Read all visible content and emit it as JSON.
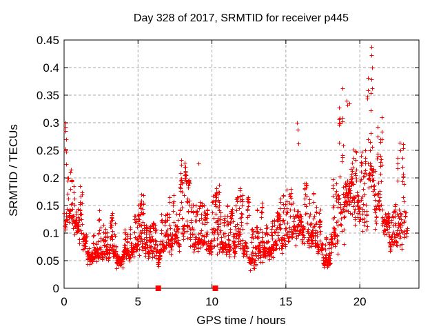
{
  "page": {
    "background": "#ffffff"
  },
  "chart_data": {
    "type": "scatter",
    "title": "Day 328 of 2017, SRMTID for receiver p445",
    "xlabel": "GPS time / hours",
    "ylabel": "SRMTID / TECUs",
    "xlim": [
      0,
      24
    ],
    "ylim": [
      0,
      0.45
    ],
    "xtick_values": [
      0,
      5,
      10,
      15,
      20
    ],
    "xtick_labels": [
      "0",
      "5",
      "10",
      "15",
      "20"
    ],
    "ytick_values": [
      0,
      0.05,
      0.1,
      0.15,
      0.2,
      0.25,
      0.3,
      0.35,
      0.4,
      0.45
    ],
    "ytick_labels": [
      "0",
      "0.05",
      "0.1",
      "0.15",
      "0.2",
      "0.25",
      "0.3",
      "0.35",
      "0.4",
      "0.45"
    ],
    "grid": true,
    "legend": "none",
    "marker": "plus",
    "marker_color": "#ff0000",
    "grid_color": "#a8a8a8",
    "axis_color": "#000000",
    "series": [
      {
        "name": "srmtid-points",
        "marker": "plus",
        "color": "#ff0000",
        "envelope_bins_format": "t_start_hours, t_end_hours, y_min_TECUs, y_max_TECUs, n_points",
        "envelope_bins": [
          [
            0.0,
            0.5,
            0.09,
            0.245,
            30
          ],
          [
            0.5,
            1.0,
            0.085,
            0.23,
            34
          ],
          [
            1.0,
            1.5,
            0.05,
            0.19,
            34
          ],
          [
            1.5,
            2.0,
            0.035,
            0.12,
            38
          ],
          [
            2.0,
            2.5,
            0.04,
            0.15,
            38
          ],
          [
            2.5,
            3.0,
            0.04,
            0.12,
            38
          ],
          [
            3.0,
            3.5,
            0.045,
            0.14,
            38
          ],
          [
            3.5,
            4.0,
            0.035,
            0.105,
            38
          ],
          [
            4.0,
            4.5,
            0.04,
            0.12,
            38
          ],
          [
            4.5,
            5.0,
            0.05,
            0.14,
            38
          ],
          [
            5.0,
            5.5,
            0.05,
            0.17,
            36
          ],
          [
            5.5,
            6.0,
            0.045,
            0.12,
            38
          ],
          [
            6.0,
            6.5,
            0.035,
            0.13,
            36
          ],
          [
            6.5,
            7.0,
            0.05,
            0.14,
            34
          ],
          [
            7.0,
            7.5,
            0.055,
            0.18,
            36
          ],
          [
            7.5,
            8.0,
            0.06,
            0.225,
            34
          ],
          [
            8.0,
            8.5,
            0.065,
            0.225,
            34
          ],
          [
            8.5,
            9.0,
            0.055,
            0.16,
            32
          ],
          [
            9.0,
            9.5,
            0.055,
            0.17,
            36
          ],
          [
            9.5,
            10.0,
            0.05,
            0.15,
            38
          ],
          [
            10.0,
            10.5,
            0.055,
            0.19,
            36
          ],
          [
            10.5,
            11.0,
            0.05,
            0.14,
            38
          ],
          [
            11.0,
            11.5,
            0.05,
            0.15,
            38
          ],
          [
            11.5,
            12.0,
            0.05,
            0.19,
            38
          ],
          [
            12.0,
            12.5,
            0.035,
            0.18,
            38
          ],
          [
            12.5,
            13.0,
            0.02,
            0.12,
            38
          ],
          [
            13.0,
            13.5,
            0.04,
            0.16,
            38
          ],
          [
            13.5,
            14.0,
            0.05,
            0.12,
            38
          ],
          [
            14.0,
            14.5,
            0.05,
            0.15,
            38
          ],
          [
            14.5,
            15.0,
            0.055,
            0.17,
            36
          ],
          [
            15.0,
            15.5,
            0.06,
            0.19,
            32
          ],
          [
            15.5,
            16.0,
            0.065,
            0.29,
            30
          ],
          [
            16.0,
            16.5,
            0.07,
            0.2,
            34
          ],
          [
            16.5,
            17.0,
            0.065,
            0.19,
            36
          ],
          [
            17.0,
            17.5,
            0.05,
            0.15,
            38
          ],
          [
            17.5,
            18.0,
            0.03,
            0.1,
            42
          ],
          [
            18.0,
            18.5,
            0.05,
            0.22,
            34
          ],
          [
            18.5,
            19.0,
            0.08,
            0.33,
            34
          ],
          [
            19.0,
            19.5,
            0.115,
            0.34,
            36
          ],
          [
            19.5,
            20.0,
            0.1,
            0.28,
            34
          ],
          [
            20.0,
            20.5,
            0.08,
            0.25,
            34
          ],
          [
            20.5,
            21.0,
            0.13,
            0.42,
            36
          ],
          [
            21.0,
            21.5,
            0.1,
            0.31,
            34
          ],
          [
            21.5,
            22.0,
            0.08,
            0.22,
            34
          ],
          [
            22.0,
            22.5,
            0.06,
            0.16,
            36
          ],
          [
            22.5,
            23.0,
            0.06,
            0.27,
            34
          ],
          [
            23.0,
            23.2,
            0.08,
            0.15,
            9
          ]
        ],
        "outlier_points": [
          [
            0.08,
            0.3
          ],
          [
            0.1,
            0.292
          ],
          [
            0.1,
            0.285
          ],
          [
            0.13,
            0.27
          ],
          [
            0.09,
            0.252
          ],
          [
            0.12,
            0.247
          ],
          [
            0.15,
            0.225
          ],
          [
            5.2,
            0.17
          ],
          [
            7.9,
            0.232
          ],
          [
            8.15,
            0.228
          ],
          [
            9.1,
            0.226
          ],
          [
            15.75,
            0.3
          ],
          [
            15.8,
            0.287
          ],
          [
            15.85,
            0.262
          ],
          [
            18.85,
            0.362
          ],
          [
            19.1,
            0.34
          ],
          [
            19.15,
            0.332
          ],
          [
            19.3,
            0.335
          ],
          [
            20.78,
            0.437
          ],
          [
            20.8,
            0.422
          ],
          [
            20.83,
            0.4
          ],
          [
            20.8,
            0.379
          ],
          [
            20.85,
            0.363
          ],
          [
            22.7,
            0.264
          ],
          [
            22.75,
            0.25
          ]
        ]
      },
      {
        "name": "baseline-event-squares",
        "marker": "filled-square",
        "color": "#ff0000",
        "points": [
          [
            6.37,
            0
          ],
          [
            10.23,
            0
          ]
        ]
      }
    ]
  }
}
